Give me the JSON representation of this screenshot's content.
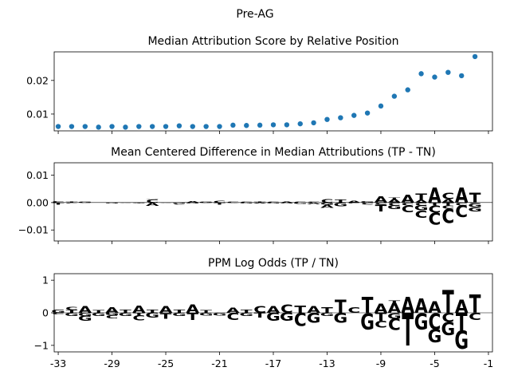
{
  "suptitle": "Pre-AG",
  "colors": {
    "A": "#008000",
    "C": "#0000ff",
    "G": "#ffa500",
    "T": "#ff0000",
    "points": "#1f77b4"
  },
  "x_ticks": [
    -33,
    -29,
    -25,
    -21,
    -17,
    -13,
    -9,
    -5,
    -1
  ],
  "chart_data": [
    {
      "type": "scatter",
      "title": "Median Attribution Score by Relative Position",
      "xlim": [
        -33.3,
        -0.7
      ],
      "ylim": [
        0.005,
        0.0285
      ],
      "yticks": [
        0.01,
        0.02
      ],
      "ytick_labels": [
        "0.01",
        "0.02"
      ],
      "x": [
        -33,
        -32,
        -31,
        -30,
        -29,
        -28,
        -27,
        -26,
        -25,
        -24,
        -23,
        -22,
        -21,
        -20,
        -19,
        -18,
        -17,
        -16,
        -15,
        -14,
        -13,
        -12,
        -11,
        -10,
        -9,
        -8,
        -7,
        -6,
        -5,
        -4,
        -3,
        -2
      ],
      "y": [
        0.0063,
        0.0063,
        0.0063,
        0.0061,
        0.0063,
        0.0061,
        0.0063,
        0.0063,
        0.0063,
        0.0065,
        0.0063,
        0.0063,
        0.0063,
        0.0067,
        0.0066,
        0.0067,
        0.0068,
        0.0068,
        0.0071,
        0.0074,
        0.0084,
        0.0089,
        0.0096,
        0.0103,
        0.0124,
        0.0153,
        0.0172,
        0.022,
        0.021,
        0.0224,
        0.0214,
        0.0271
      ]
    },
    {
      "type": "sequence-logo",
      "title": "Mean Centered Difference in Median Attributions (TP - TN)",
      "xlim": [
        -33.3,
        -0.7
      ],
      "ylim": [
        -0.014,
        0.0145
      ],
      "yticks": [
        -0.01,
        0.0,
        0.01
      ],
      "ytick_labels": [
        "−0.01",
        "0.00",
        "0.01"
      ],
      "positions": [
        {
          "x": -33,
          "letters": [
            {
              "b": "C",
              "v": 0.0006
            },
            {
              "b": "T",
              "v": -0.0007
            }
          ]
        },
        {
          "x": -32,
          "letters": [
            {
              "b": "T",
              "v": 0.0003
            },
            {
              "b": "C",
              "v": -0.0003
            }
          ]
        },
        {
          "x": -31,
          "letters": [
            {
              "b": "G",
              "v": 0.0003
            },
            {
              "b": "C",
              "v": -0.0002
            }
          ]
        },
        {
          "x": -30,
          "letters": [
            {
              "b": "A",
              "v": 0.0001
            }
          ]
        },
        {
          "x": -29,
          "letters": [
            {
              "b": "A",
              "v": 0.0002
            },
            {
              "b": "G",
              "v": -0.0003
            }
          ]
        },
        {
          "x": -28,
          "letters": [
            {
              "b": "A",
              "v": 0.0002
            },
            {
              "b": "C",
              "v": -0.0002
            }
          ]
        },
        {
          "x": -27,
          "letters": [
            {
              "b": "T",
              "v": -0.0002
            },
            {
              "b": "G",
              "v": -0.0002
            }
          ]
        },
        {
          "x": -26,
          "letters": [
            {
              "b": "C",
              "v": 0.0012
            },
            {
              "b": "G",
              "v": 0.0002
            },
            {
              "b": "A",
              "v": -0.0012
            }
          ]
        },
        {
          "x": -25,
          "letters": [
            {
              "b": "C",
              "v": -0.0002
            }
          ]
        },
        {
          "x": -24,
          "letters": [
            {
              "b": "C",
              "v": 0.0002
            },
            {
              "b": "G",
              "v": -0.0003
            },
            {
              "b": "C",
              "v": -0.0004
            }
          ]
        },
        {
          "x": -23,
          "letters": [
            {
              "b": "A",
              "v": 0.0006
            },
            {
              "b": "G",
              "v": -0.0003
            }
          ]
        },
        {
          "x": -22,
          "letters": [
            {
              "b": "G",
              "v": 0.0004
            },
            {
              "b": "A",
              "v": -0.0002
            }
          ]
        },
        {
          "x": -21,
          "letters": [
            {
              "b": "C",
              "v": 0.0008
            },
            {
              "b": "T",
              "v": -0.0008
            }
          ]
        },
        {
          "x": -20,
          "letters": [
            {
              "b": "C",
              "v": 0.0004
            },
            {
              "b": "A",
              "v": -0.0002
            }
          ]
        },
        {
          "x": -19,
          "letters": [
            {
              "b": "C",
              "v": 0.0004
            },
            {
              "b": "G",
              "v": -0.0004
            }
          ]
        },
        {
          "x": -18,
          "letters": [
            {
              "b": "T",
              "v": 0.0003
            },
            {
              "b": "A",
              "v": -0.0003
            }
          ]
        },
        {
          "x": -17,
          "letters": [
            {
              "b": "C",
              "v": 0.0004
            },
            {
              "b": "G",
              "v": -0.0004
            }
          ]
        },
        {
          "x": -16,
          "letters": [
            {
              "b": "A",
              "v": 0.0003
            },
            {
              "b": "G",
              "v": -0.0004
            }
          ]
        },
        {
          "x": -15,
          "letters": [
            {
              "b": "C",
              "v": 0.0004
            },
            {
              "b": "G",
              "v": -0.0005
            }
          ]
        },
        {
          "x": -14,
          "letters": [
            {
              "b": "C",
              "v": 0.0004
            },
            {
              "b": "A",
              "v": -0.0006
            }
          ]
        },
        {
          "x": -13,
          "letters": [
            {
              "b": "C",
              "v": 0.0013
            },
            {
              "b": "G",
              "v": -0.0008
            },
            {
              "b": "A",
              "v": -0.0012
            }
          ]
        },
        {
          "x": -12,
          "letters": [
            {
              "b": "T",
              "v": 0.0012
            },
            {
              "b": "G",
              "v": -0.0013
            }
          ]
        },
        {
          "x": -11,
          "letters": [
            {
              "b": "A",
              "v": 0.0008
            },
            {
              "b": "C",
              "v": -0.0003
            }
          ]
        },
        {
          "x": -10,
          "letters": [
            {
              "b": "G",
              "v": 0.0006
            },
            {
              "b": "C",
              "v": -0.0008
            }
          ]
        },
        {
          "x": -9,
          "letters": [
            {
              "b": "A",
              "v": 0.0022
            },
            {
              "b": "C",
              "v": -0.0008
            },
            {
              "b": "T",
              "v": -0.0025
            }
          ]
        },
        {
          "x": -8,
          "letters": [
            {
              "b": "A",
              "v": 0.0013
            },
            {
              "b": "T",
              "v": 0.0005
            },
            {
              "b": "C",
              "v": -0.001
            },
            {
              "b": "G",
              "v": -0.0014
            }
          ]
        },
        {
          "x": -7,
          "letters": [
            {
              "b": "A",
              "v": 0.0028
            },
            {
              "b": "C",
              "v": -0.001
            },
            {
              "b": "C",
              "v": -0.0025
            }
          ]
        },
        {
          "x": -6,
          "letters": [
            {
              "b": "A",
              "v": 0.001
            },
            {
              "b": "T",
              "v": 0.0023
            },
            {
              "b": "C",
              "v": -0.001
            },
            {
              "b": "G",
              "v": -0.0018
            },
            {
              "b": "C",
              "v": -0.0027
            }
          ]
        },
        {
          "x": -5,
          "letters": [
            {
              "b": "A",
              "v": 0.0055
            },
            {
              "b": "T",
              "v": -0.001
            },
            {
              "b": "C",
              "v": -0.0027
            },
            {
              "b": "C",
              "v": -0.0043
            }
          ]
        },
        {
          "x": -4,
          "letters": [
            {
              "b": "A",
              "v": 0.0013
            },
            {
              "b": "C",
              "v": 0.0022
            },
            {
              "b": "T",
              "v": -0.001
            },
            {
              "b": "C",
              "v": -0.0012
            },
            {
              "b": "C",
              "v": -0.0053
            }
          ]
        },
        {
          "x": -3,
          "letters": [
            {
              "b": "A",
              "v": 0.0055
            },
            {
              "b": "C",
              "v": -0.001
            },
            {
              "b": "C",
              "v": -0.0043
            }
          ]
        },
        {
          "x": -2,
          "letters": [
            {
              "b": "T",
              "v": 0.0035
            },
            {
              "b": "C",
              "v": -0.0004
            },
            {
              "b": "G",
              "v": -0.0013
            },
            {
              "b": "G",
              "v": -0.0015
            }
          ]
        }
      ]
    },
    {
      "type": "sequence-logo",
      "title": "PPM Log Odds (TP / TN)",
      "xlim": [
        -33.3,
        -0.7
      ],
      "ylim": [
        -1.2,
        1.2
      ],
      "yticks": [
        -1,
        0,
        1
      ],
      "ytick_labels": [
        "−1",
        "0",
        "1"
      ],
      "positions": [
        {
          "x": -33,
          "letters": [
            {
              "b": "G",
              "v": 0.09
            },
            {
              "b": "C",
              "v": -0.05
            }
          ]
        },
        {
          "x": -32,
          "letters": [
            {
              "b": "T",
              "v": 0.08
            },
            {
              "b": "C",
              "v": 0.1
            },
            {
              "b": "G",
              "v": -0.1
            }
          ]
        },
        {
          "x": -31,
          "letters": [
            {
              "b": "A",
              "v": 0.2
            },
            {
              "b": "G",
              "v": -0.1
            },
            {
              "b": "G",
              "v": -0.15
            }
          ]
        },
        {
          "x": -30,
          "letters": [
            {
              "b": "T",
              "v": 0.07
            },
            {
              "b": "G",
              "v": -0.1
            }
          ]
        },
        {
          "x": -29,
          "letters": [
            {
              "b": "A",
              "v": 0.18
            },
            {
              "b": "G",
              "v": -0.07
            },
            {
              "b": "C",
              "v": -0.1
            }
          ]
        },
        {
          "x": -28,
          "letters": [
            {
              "b": "T",
              "v": 0.1
            },
            {
              "b": "G",
              "v": -0.1
            }
          ]
        },
        {
          "x": -27,
          "letters": [
            {
              "b": "A",
              "v": 0.22
            },
            {
              "b": "T",
              "v": -0.08
            },
            {
              "b": "C",
              "v": -0.15
            }
          ]
        },
        {
          "x": -26,
          "letters": [
            {
              "b": "T",
              "v": 0.1
            },
            {
              "b": "G",
              "v": -0.15
            }
          ]
        },
        {
          "x": -25,
          "letters": [
            {
              "b": "A",
              "v": 0.2
            },
            {
              "b": "T",
              "v": -0.18
            }
          ]
        },
        {
          "x": -24,
          "letters": [
            {
              "b": "T",
              "v": 0.1
            },
            {
              "b": "G",
              "v": -0.1
            }
          ]
        },
        {
          "x": -23,
          "letters": [
            {
              "b": "A",
              "v": 0.25
            },
            {
              "b": "T",
              "v": -0.22
            }
          ]
        },
        {
          "x": -22,
          "letters": [
            {
              "b": "T",
              "v": 0.07
            },
            {
              "b": "G",
              "v": -0.08
            }
          ]
        },
        {
          "x": -21,
          "letters": [
            {
              "b": "G",
              "v": -0.08
            }
          ]
        },
        {
          "x": -20,
          "letters": [
            {
              "b": "A",
              "v": 0.15
            },
            {
              "b": "C",
              "v": -0.22
            }
          ]
        },
        {
          "x": -19,
          "letters": [
            {
              "b": "T",
              "v": 0.1
            },
            {
              "b": "G",
              "v": -0.1
            }
          ]
        },
        {
          "x": -18,
          "letters": [
            {
              "b": "C",
              "v": 0.2
            },
            {
              "b": "T",
              "v": -0.15
            }
          ]
        },
        {
          "x": -17,
          "letters": [
            {
              "b": "A",
              "v": 0.2
            },
            {
              "b": "G",
              "v": -0.25
            }
          ]
        },
        {
          "x": -16,
          "letters": [
            {
              "b": "C",
              "v": 0.25
            },
            {
              "b": "G",
              "v": -0.25
            }
          ]
        },
        {
          "x": -15,
          "letters": [
            {
              "b": "T",
              "v": 0.22
            },
            {
              "b": "C",
              "v": -0.4
            }
          ]
        },
        {
          "x": -14,
          "letters": [
            {
              "b": "A",
              "v": 0.2
            },
            {
              "b": "G",
              "v": -0.3
            }
          ]
        },
        {
          "x": -13,
          "letters": [
            {
              "b": "T",
              "v": 0.18
            },
            {
              "b": "G",
              "v": -0.1
            }
          ]
        },
        {
          "x": -12,
          "letters": [
            {
              "b": "T",
              "v": 0.4
            },
            {
              "b": "G",
              "v": -0.3
            }
          ]
        },
        {
          "x": -11,
          "letters": [
            {
              "b": "C",
              "v": 0.18
            }
          ]
        },
        {
          "x": -10,
          "letters": [
            {
              "b": "T",
              "v": 0.5
            },
            {
              "b": "G",
              "v": -0.5
            }
          ]
        },
        {
          "x": -9,
          "letters": [
            {
              "b": "A",
              "v": 0.28
            },
            {
              "b": "T",
              "v": -0.25
            },
            {
              "b": "C",
              "v": -0.2
            }
          ]
        },
        {
          "x": -8,
          "letters": [
            {
              "b": "A",
              "v": 0.3
            },
            {
              "b": "T",
              "v": 0.08
            },
            {
              "b": "G",
              "v": -0.18
            },
            {
              "b": "C",
              "v": -0.35
            }
          ]
        },
        {
          "x": -7,
          "letters": [
            {
              "b": "A",
              "v": 0.5
            },
            {
              "b": "T",
              "v": -1.0
            }
          ]
        },
        {
          "x": -6,
          "letters": [
            {
              "b": "A",
              "v": 0.45
            },
            {
              "b": "G",
              "v": -0.5
            }
          ]
        },
        {
          "x": -5,
          "letters": [
            {
              "b": "A",
              "v": 0.35
            },
            {
              "b": "C",
              "v": -0.5
            },
            {
              "b": "G",
              "v": -0.4
            }
          ]
        },
        {
          "x": -4,
          "letters": [
            {
              "b": "T",
              "v": 0.7
            },
            {
              "b": "C",
              "v": -0.28
            },
            {
              "b": "G",
              "v": -0.4
            }
          ]
        },
        {
          "x": -3,
          "letters": [
            {
              "b": "A",
              "v": 0.4
            },
            {
              "b": "T",
              "v": -0.55
            },
            {
              "b": "G",
              "v": -0.55
            }
          ]
        },
        {
          "x": -2,
          "letters": [
            {
              "b": "T",
              "v": 0.55
            },
            {
              "b": "C",
              "v": -0.22
            }
          ]
        }
      ]
    }
  ]
}
